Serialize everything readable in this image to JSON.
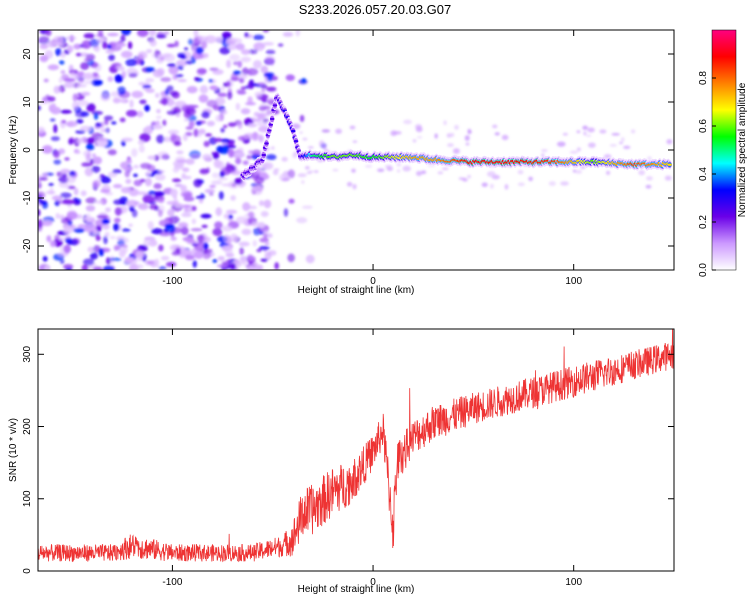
{
  "title": "S233.2026.057.20.03.G07",
  "chart_data": [
    {
      "type": "heatmap",
      "xlabel": "Height of straight line (km)",
      "ylabel": "Frequency (Hz)",
      "xlim": [
        -167,
        150
      ],
      "ylim": [
        -25,
        25
      ],
      "xticks": [
        -100,
        0,
        100
      ],
      "xtick_labels": [
        "-100",
        "0",
        "100"
      ],
      "yticks": [
        -20,
        -10,
        0,
        10,
        20
      ],
      "ytick_labels": [
        "-20",
        "-10",
        "0",
        "10",
        "20"
      ],
      "colorbar": {
        "label": "Normalized spectral amplitude",
        "range": [
          0,
          1
        ],
        "ticks": [
          0.0,
          0.2,
          0.4,
          0.6,
          0.8
        ],
        "tick_labels": [
          "0.0",
          "0.2",
          "0.4",
          "0.6",
          "0.8"
        ],
        "colors": [
          "#ffffff",
          "#cc99ff",
          "#6a00e8",
          "#0000ff",
          "#00ffff",
          "#00ff00",
          "#ffff00",
          "#ff8000",
          "#ff0000",
          "#ff0080"
        ]
      },
      "ridge": {
        "x": [
          -65,
          -55,
          -48,
          -44,
          -40,
          -36,
          -30,
          -20,
          -10,
          0,
          10,
          20,
          30,
          50,
          70,
          90,
          110,
          130,
          148
        ],
        "y": [
          -5.5,
          -2.0,
          11.0,
          8.0,
          4.0,
          -1.5,
          -1.0,
          -1.5,
          -1.0,
          -1.5,
          -1.5,
          -1.5,
          -2.0,
          -2.5,
          -2.5,
          -2.5,
          -2.5,
          -3.0,
          -3.0
        ],
        "amplitude": [
          0.25,
          0.25,
          0.25,
          0.3,
          0.3,
          0.25,
          0.5,
          0.6,
          0.6,
          0.55,
          0.65,
          0.75,
          0.75,
          0.9,
          0.9,
          0.85,
          0.6,
          0.85,
          0.7
        ]
      },
      "noise_region_x": [
        -167,
        -50
      ]
    },
    {
      "type": "line",
      "xlabel": "Height of straight line (km)",
      "ylabel": "SNR (10 * v/v)",
      "xlim": [
        -167,
        150
      ],
      "ylim": [
        0,
        335
      ],
      "xticks": [
        -100,
        0,
        100
      ],
      "xtick_labels": [
        "-100",
        "0",
        "100"
      ],
      "yticks": [
        0,
        100,
        200,
        300
      ],
      "ytick_labels": [
        "0",
        "100",
        "200",
        "300"
      ],
      "color": "#ee3333",
      "series": [
        {
          "name": "SNR",
          "x": [
            -167,
            -150,
            -130,
            -120,
            -100,
            -80,
            -60,
            -45,
            -40,
            -35,
            -30,
            -20,
            -10,
            0,
            5,
            10,
            12,
            20,
            30,
            50,
            70,
            90,
            110,
            130,
            150
          ],
          "y": [
            25,
            25,
            25,
            35,
            25,
            25,
            25,
            35,
            45,
            80,
            85,
            110,
            125,
            165,
            195,
            60,
            150,
            185,
            205,
            225,
            240,
            255,
            270,
            285,
            300
          ],
          "noise_amplitude": [
            12,
            12,
            12,
            18,
            12,
            12,
            12,
            15,
            25,
            35,
            35,
            35,
            30,
            25,
            25,
            40,
            30,
            25,
            25,
            22,
            22,
            22,
            22,
            20,
            20
          ]
        }
      ]
    }
  ]
}
